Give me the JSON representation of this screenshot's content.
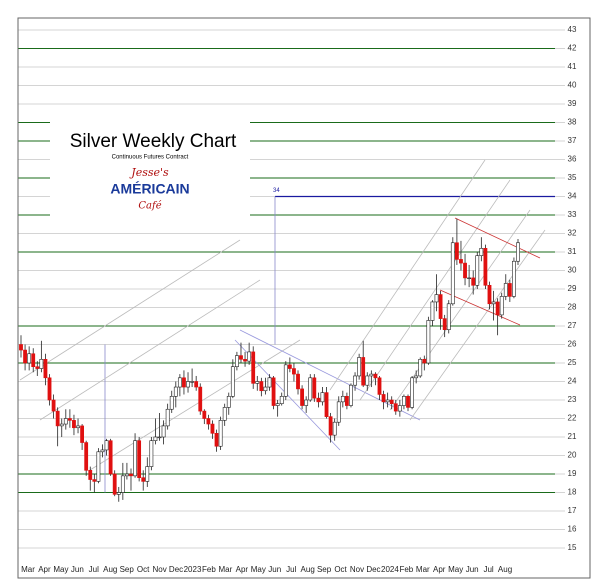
{
  "chart_data": {
    "type": "candlestick",
    "title": "Silver Weekly Chart",
    "subtitle": "Continuous Futures Contract",
    "logo": {
      "line1": "Jesse's",
      "line2": "AMÉRICAIN",
      "line3": "Café"
    },
    "ylim": [
      15,
      43
    ],
    "yticks": [
      15,
      16,
      17,
      18,
      19,
      20,
      21,
      22,
      23,
      24,
      25,
      26,
      27,
      28,
      29,
      30,
      31,
      32,
      33,
      34,
      35,
      36,
      37,
      38,
      39,
      40,
      41,
      42,
      43
    ],
    "major_grid": [
      18,
      19,
      25,
      27,
      31,
      33,
      35,
      37,
      38,
      42
    ],
    "grid_color": "#aaaaaa",
    "major_grid_color": "#1a6b1a",
    "annotation": {
      "value": 34,
      "color": "#1a1aa0"
    },
    "up_color": "#ffffff",
    "down_color": "#e01010",
    "x_labels": [
      "Mar",
      "Apr",
      "May",
      "Jun",
      "Jul",
      "Aug",
      "Sep",
      "Oct",
      "Nov",
      "Dec",
      "2023",
      "Feb",
      "Mar",
      "Apr",
      "May",
      "Jun",
      "Jul",
      "Aug",
      "Sep",
      "Oct",
      "Nov",
      "Dec",
      "2024",
      "Feb",
      "Mar",
      "Apr",
      "May",
      "Jun",
      "Jul",
      "Aug"
    ],
    "ohlc": [
      [
        26.0,
        26.5,
        25.3,
        25.7
      ],
      [
        25.7,
        26.0,
        24.6,
        25.0
      ],
      [
        25.0,
        25.9,
        24.6,
        25.5
      ],
      [
        25.5,
        25.8,
        24.5,
        24.8
      ],
      [
        24.8,
        25.1,
        24.3,
        24.7
      ],
      [
        24.7,
        26.2,
        24.5,
        25.2
      ],
      [
        25.2,
        25.5,
        23.8,
        24.2
      ],
      [
        24.2,
        24.4,
        22.7,
        23.0
      ],
      [
        23.0,
        23.3,
        22.0,
        22.4
      ],
      [
        22.4,
        22.6,
        20.5,
        21.6
      ],
      [
        21.6,
        22.0,
        21.0,
        21.7
      ],
      [
        21.7,
        22.5,
        21.4,
        22.0
      ],
      [
        22.0,
        22.5,
        21.5,
        21.9
      ],
      [
        21.9,
        22.2,
        21.1,
        21.5
      ],
      [
        21.5,
        22.0,
        21.2,
        21.6
      ],
      [
        21.6,
        21.7,
        20.3,
        20.7
      ],
      [
        20.7,
        20.8,
        18.9,
        19.2
      ],
      [
        19.2,
        19.4,
        18.1,
        18.7
      ],
      [
        18.7,
        19.0,
        18.0,
        18.6
      ],
      [
        18.6,
        20.4,
        18.5,
        20.2
      ],
      [
        20.2,
        20.6,
        19.9,
        20.3
      ],
      [
        20.3,
        20.9,
        20.0,
        20.8
      ],
      [
        20.8,
        20.9,
        18.9,
        19.0
      ],
      [
        19.0,
        19.2,
        17.8,
        17.9
      ],
      [
        17.9,
        18.3,
        17.5,
        18.0
      ],
      [
        18.0,
        19.6,
        17.6,
        18.9
      ],
      [
        18.9,
        19.6,
        18.7,
        19.0
      ],
      [
        19.0,
        19.3,
        18.1,
        18.9
      ],
      [
        18.9,
        21.2,
        18.8,
        20.8
      ],
      [
        20.8,
        21.0,
        18.6,
        18.8
      ],
      [
        18.8,
        19.2,
        18.1,
        18.6
      ],
      [
        18.6,
        19.9,
        18.3,
        19.4
      ],
      [
        19.4,
        21.0,
        19.2,
        20.8
      ],
      [
        20.8,
        22.0,
        20.6,
        21.0
      ],
      [
        21.0,
        22.3,
        20.8,
        21.0
      ],
      [
        21.0,
        21.9,
        20.6,
        21.6
      ],
      [
        21.6,
        22.8,
        21.4,
        22.5
      ],
      [
        22.5,
        23.5,
        22.3,
        23.2
      ],
      [
        23.2,
        24.0,
        22.6,
        23.7
      ],
      [
        23.7,
        24.4,
        23.2,
        24.2
      ],
      [
        24.2,
        24.6,
        23.3,
        23.7
      ],
      [
        23.7,
        24.5,
        23.4,
        24.0
      ],
      [
        24.0,
        24.7,
        23.7,
        24.0
      ],
      [
        24.0,
        24.3,
        23.5,
        23.7
      ],
      [
        23.7,
        23.9,
        22.2,
        22.4
      ],
      [
        22.4,
        22.5,
        21.7,
        22.0
      ],
      [
        22.0,
        22.2,
        21.4,
        21.7
      ],
      [
        21.7,
        21.9,
        20.9,
        21.2
      ],
      [
        21.2,
        21.4,
        20.2,
        20.5
      ],
      [
        20.5,
        22.1,
        20.3,
        21.9
      ],
      [
        21.9,
        22.8,
        21.6,
        22.6
      ],
      [
        22.6,
        23.4,
        22.2,
        23.2
      ],
      [
        23.2,
        25.2,
        23.1,
        24.8
      ],
      [
        24.8,
        25.6,
        24.6,
        25.4
      ],
      [
        25.4,
        26.1,
        25.0,
        25.2
      ],
      [
        25.2,
        25.6,
        24.8,
        25.1
      ],
      [
        25.1,
        26.1,
        24.9,
        25.6
      ],
      [
        25.6,
        25.9,
        23.6,
        23.9
      ],
      [
        23.9,
        24.3,
        23.5,
        24.0
      ],
      [
        24.0,
        24.2,
        23.2,
        23.5
      ],
      [
        23.5,
        24.2,
        23.3,
        23.7
      ],
      [
        23.7,
        24.4,
        23.5,
        24.2
      ],
      [
        24.2,
        24.3,
        22.5,
        22.7
      ],
      [
        22.7,
        23.0,
        22.1,
        22.8
      ],
      [
        22.8,
        23.4,
        22.7,
        23.2
      ],
      [
        23.2,
        25.1,
        23.0,
        24.9
      ],
      [
        24.9,
        25.3,
        24.5,
        24.7
      ],
      [
        24.7,
        25.0,
        24.0,
        24.4
      ],
      [
        24.4,
        24.6,
        23.3,
        23.6
      ],
      [
        23.6,
        23.8,
        22.5,
        22.7
      ],
      [
        22.7,
        23.2,
        22.3,
        23.0
      ],
      [
        23.0,
        24.4,
        22.9,
        24.2
      ],
      [
        24.2,
        24.4,
        22.9,
        23.1
      ],
      [
        23.1,
        23.4,
        22.6,
        22.9
      ],
      [
        22.9,
        23.7,
        22.7,
        23.4
      ],
      [
        23.4,
        23.7,
        22.0,
        22.1
      ],
      [
        22.1,
        22.3,
        20.7,
        21.1
      ],
      [
        21.1,
        22.0,
        20.8,
        21.8
      ],
      [
        21.8,
        23.2,
        21.6,
        22.9
      ],
      [
        22.9,
        23.5,
        22.6,
        23.2
      ],
      [
        23.2,
        23.4,
        22.5,
        22.7
      ],
      [
        22.7,
        23.9,
        22.6,
        23.8
      ],
      [
        23.8,
        24.5,
        23.5,
        24.3
      ],
      [
        24.3,
        25.5,
        24.1,
        25.3
      ],
      [
        25.3,
        26.2,
        23.7,
        23.8
      ],
      [
        23.8,
        24.5,
        23.5,
        24.3
      ],
      [
        24.3,
        24.6,
        23.7,
        24.4
      ],
      [
        24.4,
        24.5,
        23.8,
        24.2
      ],
      [
        24.2,
        24.3,
        23.0,
        23.3
      ],
      [
        23.3,
        23.5,
        22.5,
        22.9
      ],
      [
        22.9,
        23.4,
        22.6,
        23.0
      ],
      [
        23.0,
        23.2,
        22.5,
        22.8
      ],
      [
        22.8,
        23.0,
        22.2,
        22.4
      ],
      [
        22.4,
        23.0,
        22.1,
        22.7
      ],
      [
        22.7,
        23.3,
        22.5,
        23.2
      ],
      [
        23.2,
        23.3,
        22.4,
        22.6
      ],
      [
        22.6,
        24.3,
        22.5,
        24.2
      ],
      [
        24.2,
        24.6,
        23.9,
        24.3
      ],
      [
        24.3,
        25.3,
        24.2,
        25.2
      ],
      [
        25.2,
        25.4,
        24.6,
        25.0
      ],
      [
        25.0,
        27.5,
        24.9,
        27.3
      ],
      [
        27.3,
        28.4,
        27.0,
        28.3
      ],
      [
        28.3,
        29.8,
        27.8,
        28.7
      ],
      [
        28.7,
        28.9,
        26.8,
        27.4
      ],
      [
        27.4,
        27.6,
        26.4,
        26.8
      ],
      [
        26.8,
        28.4,
        26.6,
        28.2
      ],
      [
        28.2,
        31.8,
        28.1,
        31.5
      ],
      [
        31.5,
        32.8,
        30.3,
        30.6
      ],
      [
        30.6,
        31.6,
        30.0,
        30.4
      ],
      [
        30.4,
        30.9,
        29.2,
        29.6
      ],
      [
        29.6,
        30.3,
        29.1,
        29.6
      ],
      [
        29.6,
        30.0,
        28.7,
        29.2
      ],
      [
        29.2,
        31.0,
        29.0,
        30.8
      ],
      [
        30.8,
        31.8,
        30.5,
        31.2
      ],
      [
        31.2,
        31.4,
        29.0,
        29.2
      ],
      [
        29.2,
        29.4,
        27.9,
        28.2
      ],
      [
        28.2,
        28.9,
        27.3,
        28.3
      ],
      [
        28.3,
        28.5,
        26.5,
        27.6
      ],
      [
        27.6,
        28.8,
        27.4,
        28.6
      ],
      [
        28.6,
        29.8,
        28.4,
        29.3
      ],
      [
        29.3,
        29.5,
        28.3,
        28.6
      ],
      [
        28.6,
        30.7,
        28.5,
        30.5
      ],
      [
        30.5,
        31.7,
        30.3,
        31.5
      ]
    ]
  }
}
